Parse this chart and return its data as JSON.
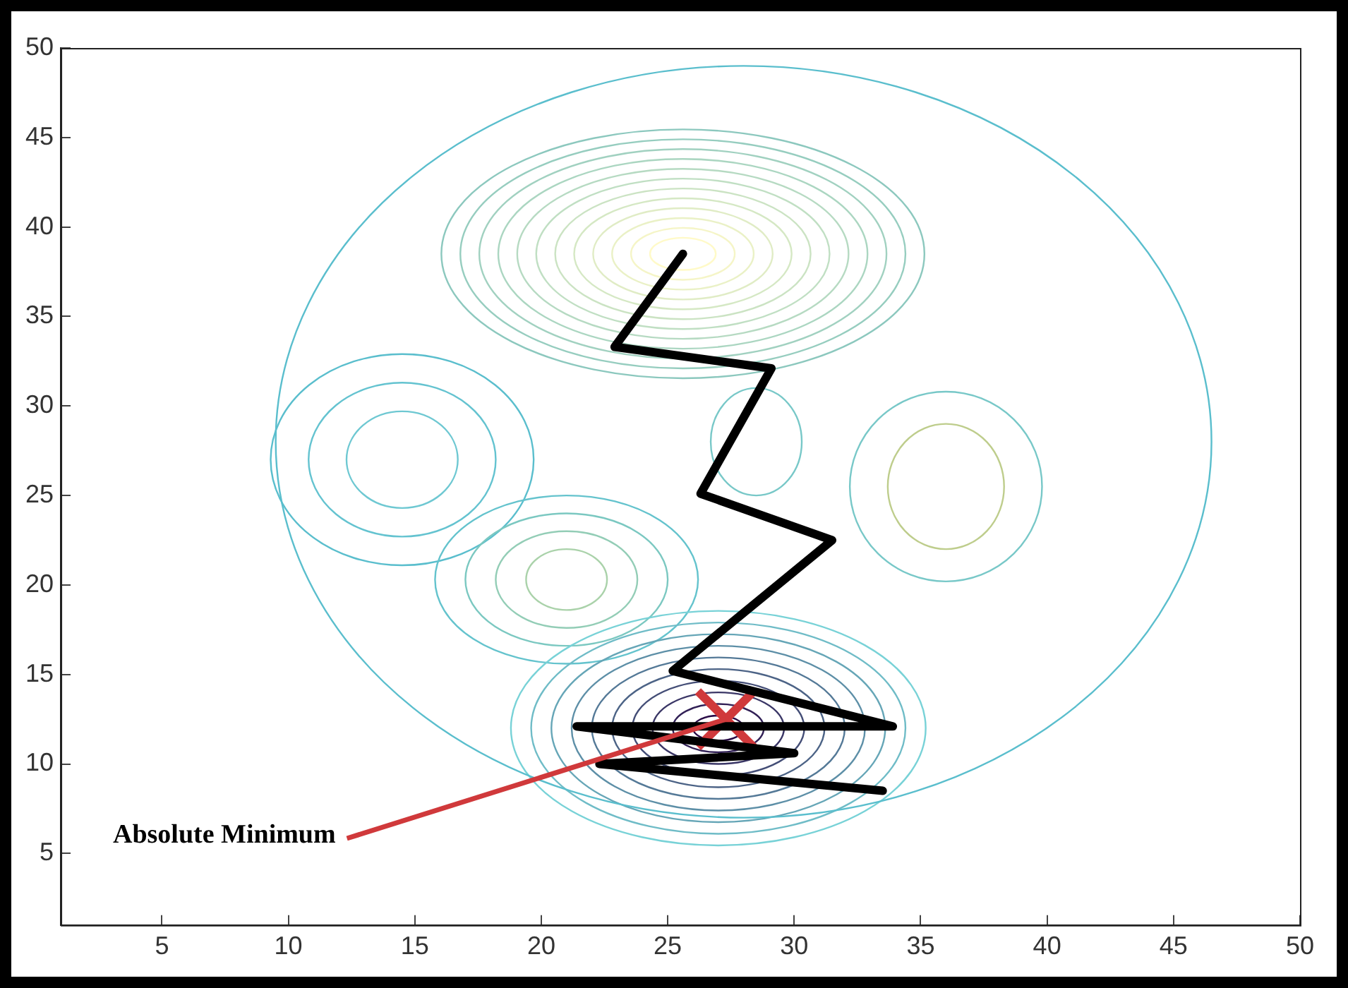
{
  "chart_data": {
    "type": "line",
    "xlim": [
      1,
      50
    ],
    "ylim": [
      1,
      50
    ],
    "xticks": [
      5,
      10,
      15,
      20,
      25,
      30,
      35,
      40,
      45,
      50
    ],
    "yticks": [
      5,
      10,
      15,
      20,
      25,
      30,
      35,
      40,
      45,
      50
    ],
    "grid": false,
    "legend": false,
    "marker": "none",
    "line_style": "solid",
    "series": [
      {
        "type": "line",
        "color": "#000000",
        "x": [
          25.6,
          22.9,
          29.1,
          26.3,
          31.5,
          25.2,
          33.9,
          21.4,
          30.0,
          22.3,
          33.5
        ],
        "values": [
          38.5,
          33.3,
          32.1,
          25.1,
          22.5,
          15.2,
          12.1,
          12.1,
          10.6,
          10.0,
          8.5
        ]
      },
      {
        "type": "scatter",
        "color": "#d0393b",
        "marker": "cross",
        "x": [
          27.3
        ],
        "values": [
          12.5
        ]
      }
    ],
    "annotations": [
      {
        "text": "Absolute Minimum",
        "x": 27.3,
        "y": 12.5
      }
    ]
  }
}
